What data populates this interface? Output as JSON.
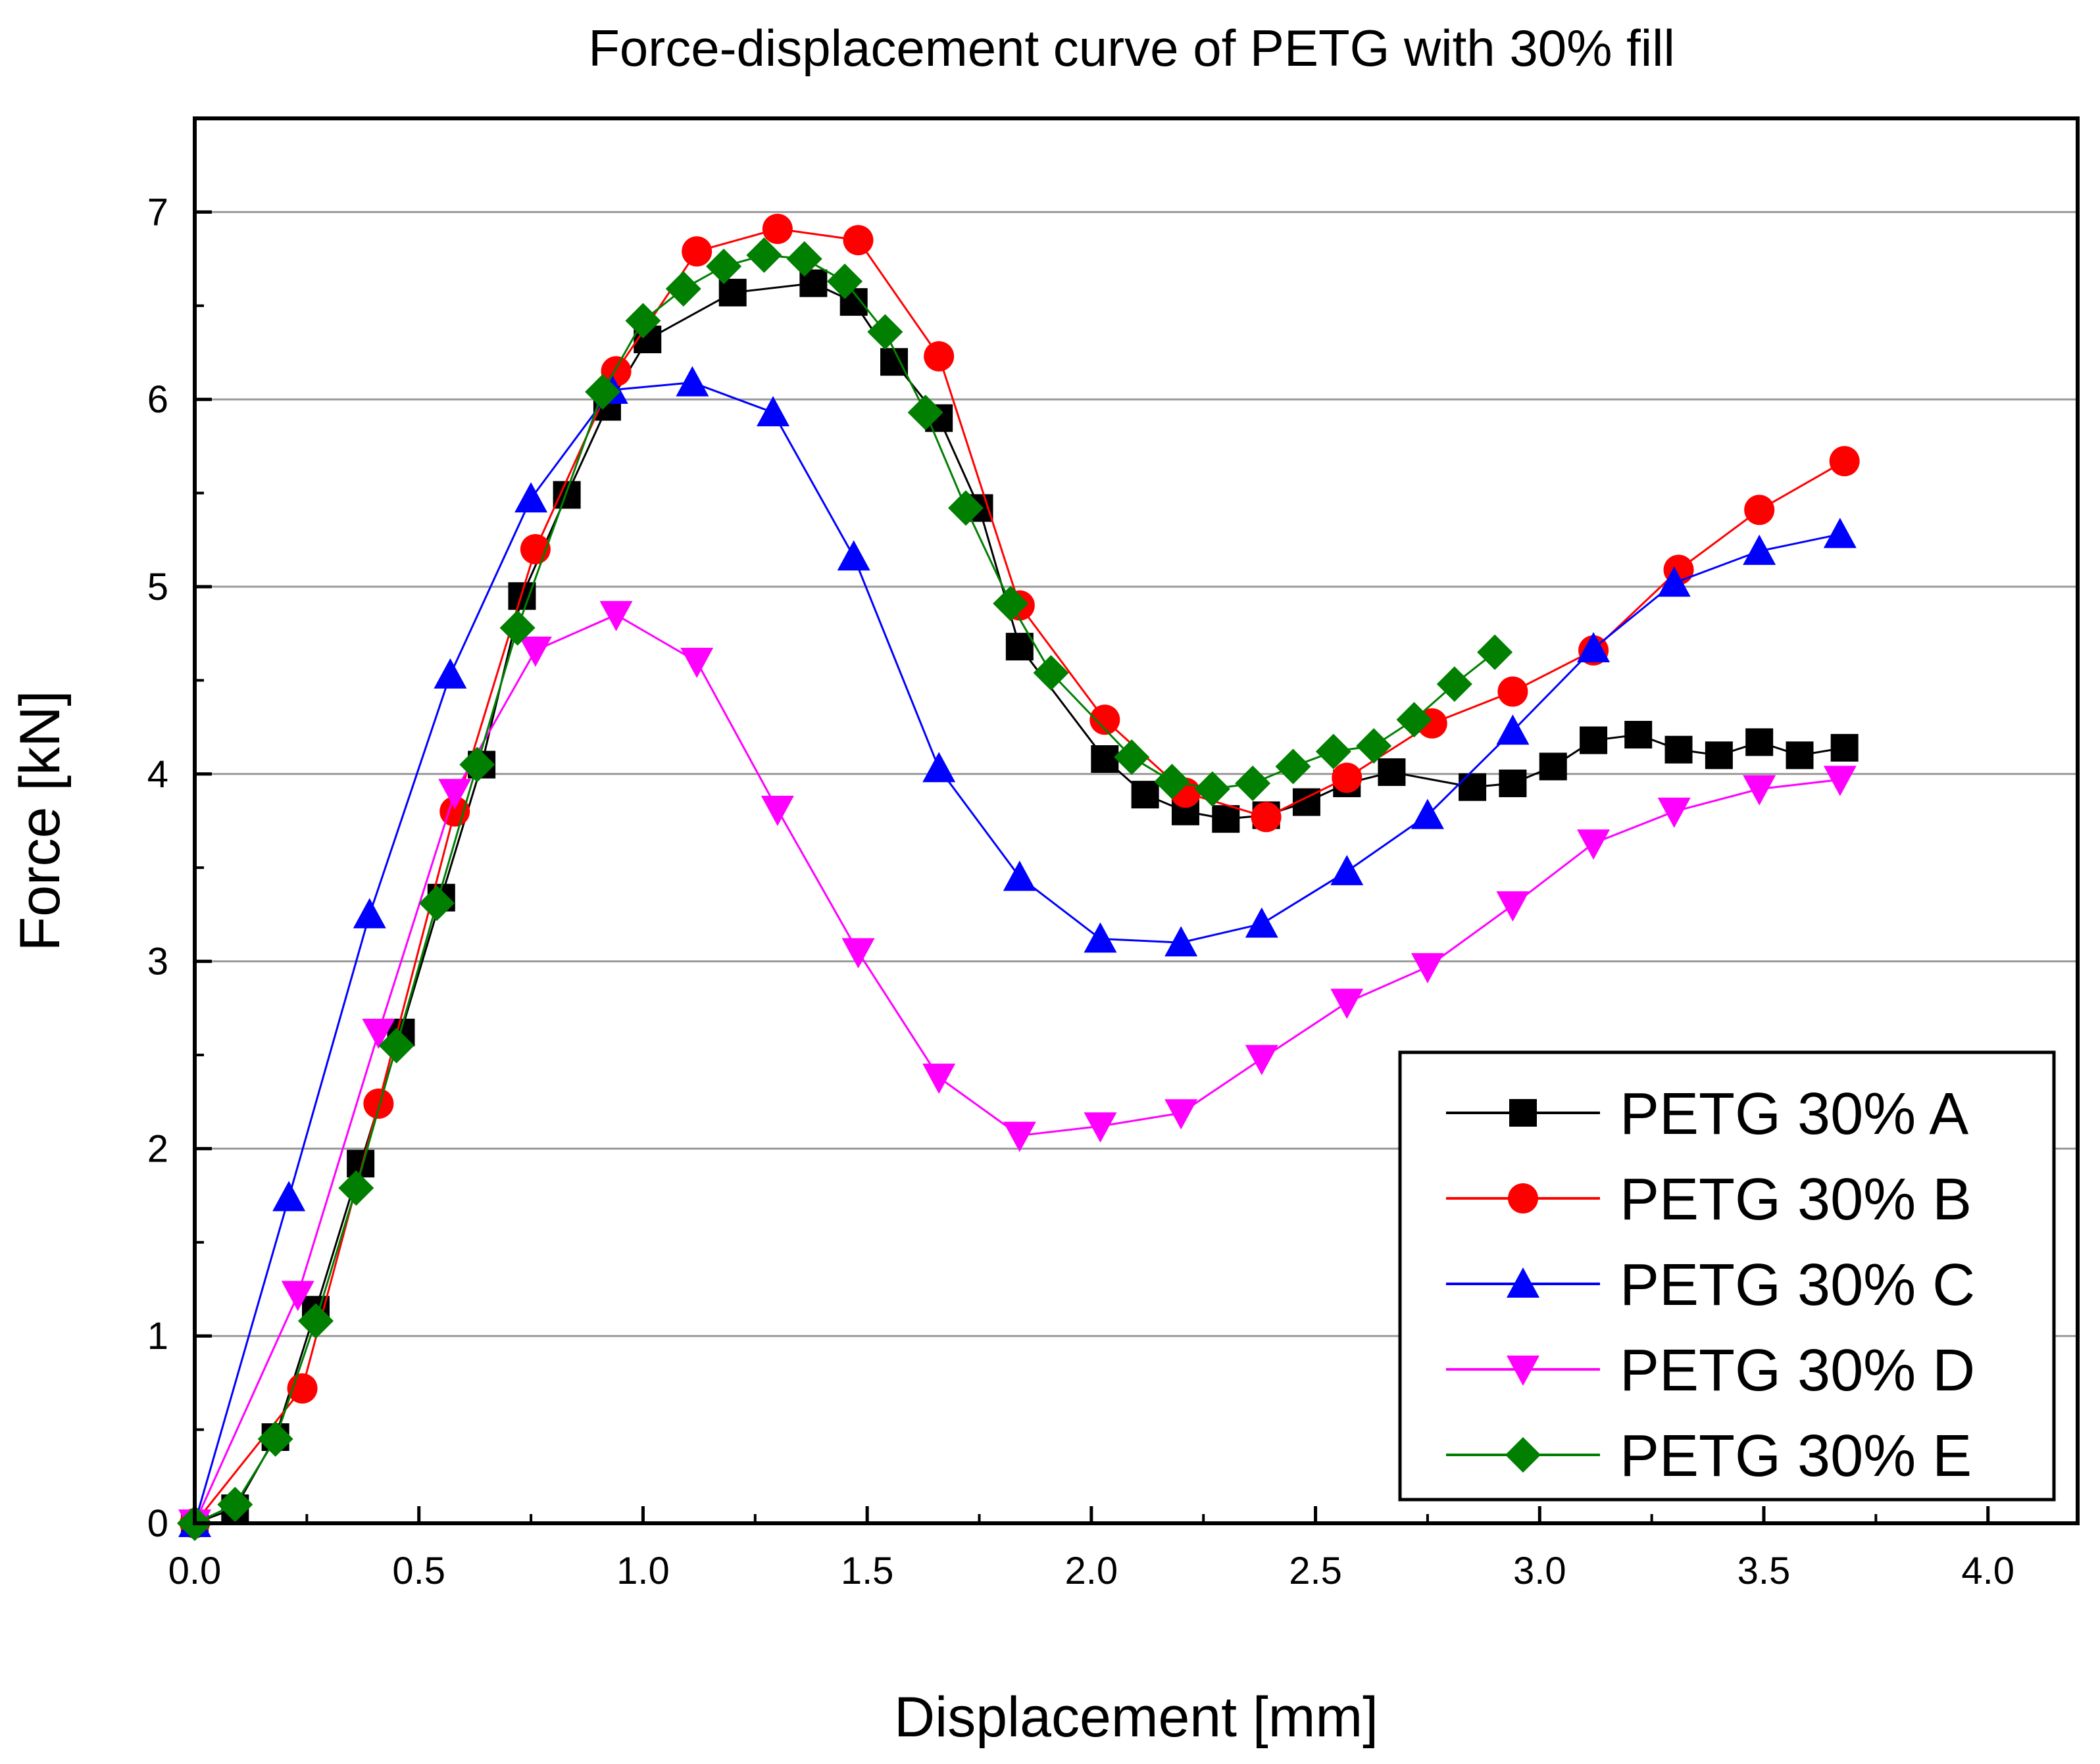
{
  "chart_data": {
    "type": "line",
    "title": "Force-displacement curve of PETG with 30% fill",
    "xlabel": "Displacement [mm]",
    "ylabel": "Force [kN]",
    "xlim": [
      0,
      4.2
    ],
    "ylim": [
      0,
      7.5
    ],
    "xticks": [
      0,
      0.5,
      1,
      1.5,
      2,
      2.5,
      3,
      3.5,
      4
    ],
    "xtick_labels": [
      "0.0",
      "0.5",
      "1.0",
      "1.5",
      "2.0",
      "2.5",
      "3.0",
      "3.5",
      "4.0"
    ],
    "yticks": [
      0,
      1,
      2,
      3,
      4,
      5,
      6,
      7
    ],
    "ytick_labels": [
      "0",
      "1",
      "2",
      "3",
      "4",
      "5",
      "6",
      "7"
    ],
    "grid": "horizontal",
    "legend_position": "bottom-right",
    "series": [
      {
        "name": "PETG 30% A",
        "color": "#000000",
        "marker": "square",
        "x": [
          0,
          0.09,
          0.18,
          0.27,
          0.37,
          0.46,
          0.55,
          0.64,
          0.73,
          0.83,
          0.92,
          1.01,
          1.2,
          1.38,
          1.47,
          1.56,
          1.66,
          1.75,
          1.84,
          2.03,
          2.12,
          2.21,
          2.3,
          2.39,
          2.48,
          2.57,
          2.67,
          2.85,
          2.94,
          3.03,
          3.12,
          3.22,
          3.31,
          3.4,
          3.49,
          3.58,
          3.68
        ],
        "y": [
          0,
          0.08,
          0.46,
          1.14,
          1.92,
          2.62,
          3.34,
          4.05,
          4.95,
          5.49,
          5.96,
          6.32,
          6.57,
          6.62,
          6.52,
          6.2,
          5.9,
          5.42,
          4.68,
          4.08,
          3.89,
          3.8,
          3.76,
          3.78,
          3.85,
          3.95,
          4.01,
          3.93,
          3.95,
          4.04,
          4.18,
          4.21,
          4.13,
          4.1,
          4.17,
          4.1,
          4.14
        ]
      },
      {
        "name": "PETG 30% B",
        "color": "#ff0000",
        "marker": "circle",
        "x": [
          0,
          0.24,
          0.41,
          0.58,
          0.76,
          0.94,
          1.12,
          1.3,
          1.48,
          1.66,
          1.84,
          2.03,
          2.21,
          2.39,
          2.57,
          2.76,
          2.94,
          3.12,
          3.31,
          3.49,
          3.68
        ],
        "y": [
          0,
          0.72,
          2.24,
          3.8,
          5.2,
          6.15,
          6.79,
          6.91,
          6.85,
          6.23,
          4.9,
          4.29,
          3.9,
          3.77,
          3.98,
          4.27,
          4.44,
          4.66,
          5.09,
          5.41,
          5.67
        ]
      },
      {
        "name": "PETG 30% C",
        "color": "#0000ff",
        "marker": "triangle-up",
        "x": [
          0,
          0.21,
          0.39,
          0.57,
          0.75,
          0.93,
          1.11,
          1.29,
          1.47,
          1.66,
          1.84,
          2.02,
          2.2,
          2.38,
          2.57,
          2.75,
          2.94,
          3.12,
          3.3,
          3.49,
          3.67
        ],
        "y": [
          0,
          1.74,
          3.25,
          4.53,
          5.47,
          6.05,
          6.09,
          5.93,
          5.16,
          4.03,
          3.45,
          3.12,
          3.1,
          3.2,
          3.48,
          3.78,
          4.23,
          4.67,
          5.02,
          5.19,
          5.28
        ]
      },
      {
        "name": "PETG 30% D",
        "color": "#ff00ff",
        "marker": "triangle-down",
        "x": [
          0,
          0.23,
          0.41,
          0.58,
          0.76,
          0.94,
          1.12,
          1.3,
          1.48,
          1.66,
          1.84,
          2.02,
          2.2,
          2.38,
          2.57,
          2.75,
          2.94,
          3.12,
          3.3,
          3.49,
          3.67
        ],
        "y": [
          0,
          1.22,
          2.62,
          3.9,
          4.66,
          4.85,
          4.6,
          3.81,
          3.05,
          2.38,
          2.07,
          2.12,
          2.19,
          2.48,
          2.78,
          2.97,
          3.3,
          3.63,
          3.8,
          3.92,
          3.97
        ]
      },
      {
        "name": "PETG 30% E",
        "color": "#007f00",
        "marker": "diamond",
        "x": [
          0,
          0.09,
          0.18,
          0.27,
          0.36,
          0.45,
          0.54,
          0.63,
          0.72,
          0.91,
          1.0,
          1.09,
          1.18,
          1.27,
          1.36,
          1.45,
          1.54,
          1.63,
          1.72,
          1.82,
          1.91,
          2.09,
          2.18,
          2.27,
          2.36,
          2.45,
          2.54,
          2.63,
          2.72,
          2.81,
          2.9
        ],
        "y": [
          0,
          0.1,
          0.45,
          1.08,
          1.79,
          2.55,
          3.31,
          4.05,
          4.78,
          6.04,
          6.42,
          6.59,
          6.71,
          6.77,
          6.75,
          6.63,
          6.36,
          5.93,
          5.42,
          4.91,
          4.54,
          4.09,
          3.96,
          3.92,
          3.95,
          4.04,
          4.12,
          4.15,
          4.29,
          4.48,
          4.65
        ]
      }
    ]
  }
}
